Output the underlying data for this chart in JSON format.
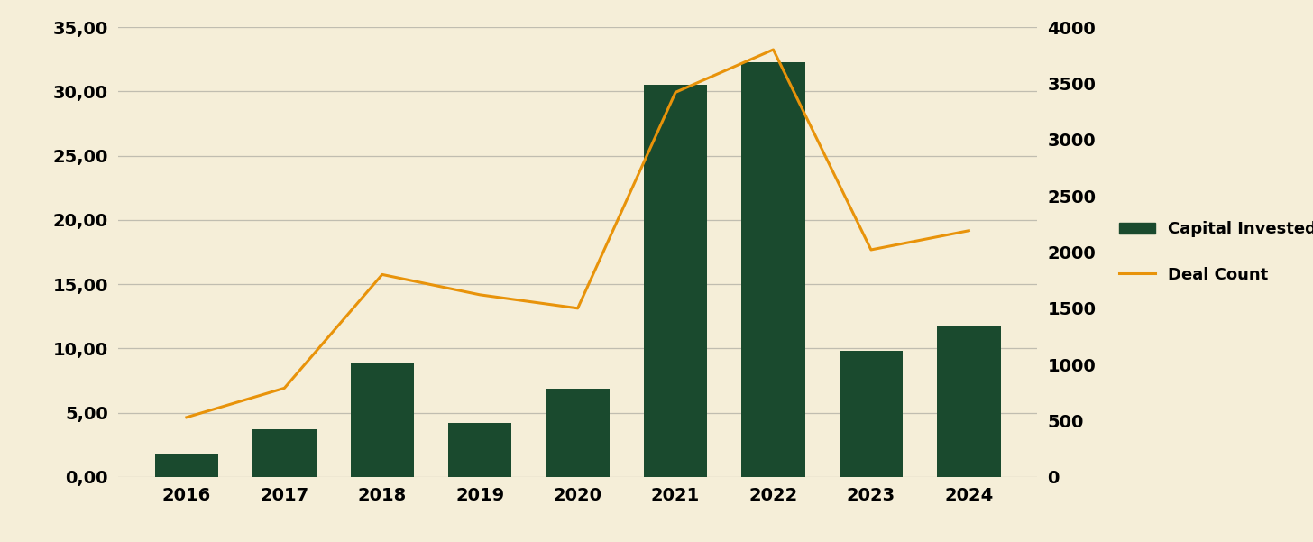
{
  "years": [
    "2016",
    "2017",
    "2018",
    "2019",
    "2020",
    "2021",
    "2022",
    "2023",
    "2024"
  ],
  "capital_invested": [
    1.8,
    3.7,
    8.9,
    4.2,
    6.9,
    30.5,
    32.3,
    9.8,
    11.7
  ],
  "deal_count": [
    530,
    790,
    1800,
    1620,
    1500,
    3420,
    3800,
    2020,
    2190
  ],
  "bar_color": "#1a4a2e",
  "line_color": "#e8930a",
  "background_color": "#f5eed8",
  "yleft_min": 0,
  "yleft_max": 35,
  "yleft_ticks": [
    0,
    5,
    10,
    15,
    20,
    25,
    30,
    35
  ],
  "yright_min": 0,
  "yright_max": 4000,
  "yright_ticks": [
    0,
    500,
    1000,
    1500,
    2000,
    2500,
    3000,
    3500,
    4000
  ],
  "legend_capital": "Capital Invested",
  "legend_deal": "Deal Count",
  "grid_color": "#c0bdb0",
  "tick_label_size": 14,
  "bar_width": 0.65,
  "legend_fontsize": 13,
  "line_width": 2.2
}
